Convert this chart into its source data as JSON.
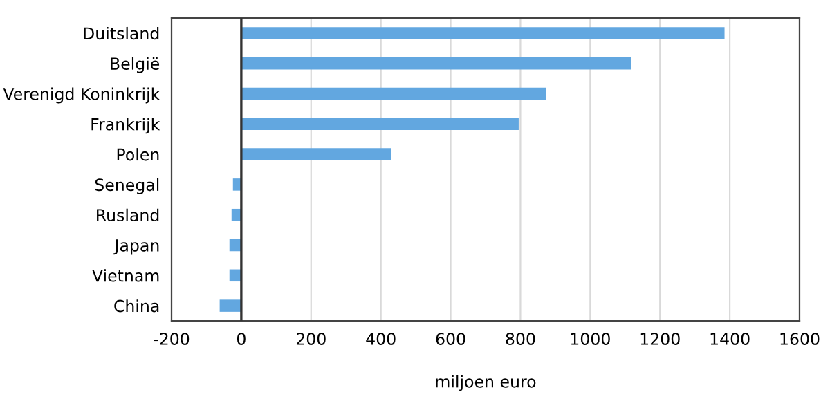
{
  "chart_data": {
    "type": "bar",
    "orientation": "horizontal",
    "xlabel": "miljoen euro",
    "categories": [
      "Duitsland",
      "België",
      "Verenigd Koninkrijk",
      "Frankrijk",
      "Polen",
      "Senegal",
      "Rusland",
      "Japan",
      "Vietnam",
      "China"
    ],
    "values": [
      1385,
      1118,
      873,
      795,
      430,
      -24,
      -28,
      -34,
      -34,
      -62
    ],
    "color": "#62a7e0",
    "xlim": [
      -200,
      1600
    ],
    "xticks": [
      -200,
      0,
      200,
      400,
      600,
      800,
      1000,
      1200,
      1400,
      1600
    ],
    "grid": "x",
    "ref_lines": [
      {
        "axis": "x",
        "value": 0,
        "color": "#333333"
      }
    ]
  }
}
